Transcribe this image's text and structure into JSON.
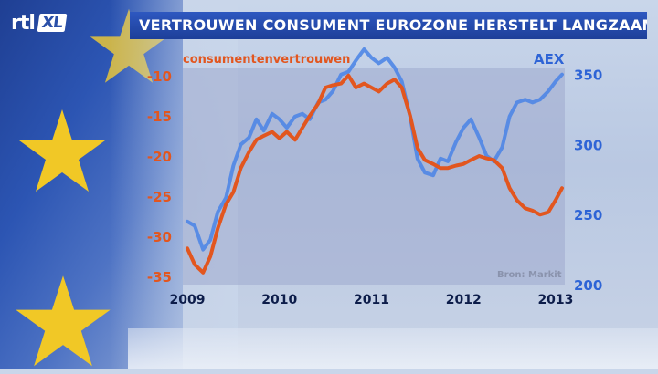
{
  "brand": {
    "logo_main": "rtl",
    "logo_badge": "XL"
  },
  "header": {
    "title": "VERTROUWEN CONSUMENT EUROZONE HERSTELT LANGZAAM"
  },
  "source_note": "Bron: Markit",
  "colors": {
    "consumer": "#e2561f",
    "aex": "#4f86e6",
    "left_axis_text": "#e2561f",
    "right_axis_text": "#2e64d6",
    "x_axis_text": "#0d1d4a",
    "star": "#f1c826"
  },
  "icons": [
    "eu-star-icon"
  ],
  "chart_data": {
    "type": "line",
    "title": "VERTROUWEN CONSUMENT EUROZONE HERSTELT LANGZAAM",
    "x_ticks": [
      "2009",
      "2010",
      "2011",
      "2012",
      "2013"
    ],
    "x_tick_values": [
      2009,
      2010,
      2011,
      2012,
      2013
    ],
    "xlim": [
      2008.95,
      2013.1
    ],
    "y_left": {
      "label": "consumentenvertrouwen",
      "ticks": [
        -10,
        -15,
        -20,
        -25,
        -30,
        -35
      ],
      "range": [
        -36,
        -9
      ]
    },
    "y_right": {
      "label": "AEX",
      "ticks": [
        350,
        300,
        250,
        200
      ],
      "range": [
        200,
        355
      ]
    },
    "grid": false,
    "series": [
      {
        "name": "consumentenvertrouwen",
        "axis": "left",
        "x": [
          2009.0,
          2009.08,
          2009.17,
          2009.25,
          2009.33,
          2009.42,
          2009.5,
          2009.58,
          2009.67,
          2009.75,
          2009.83,
          2009.92,
          2010.0,
          2010.08,
          2010.17,
          2010.25,
          2010.33,
          2010.42,
          2010.5,
          2010.58,
          2010.67,
          2010.75,
          2010.83,
          2010.92,
          2011.0,
          2011.08,
          2011.17,
          2011.25,
          2011.33,
          2011.42,
          2011.5,
          2011.58,
          2011.67,
          2011.75,
          2011.83,
          2011.92,
          2012.0,
          2012.08,
          2012.17,
          2012.25,
          2012.33,
          2012.42,
          2012.5,
          2012.58,
          2012.67,
          2012.75,
          2012.83,
          2012.92,
          2013.0,
          2013.07
        ],
        "values": [
          -31.5,
          -33.5,
          -34.5,
          -32.5,
          -29,
          -26,
          -24.5,
          -21.5,
          -19.5,
          -18,
          -17.5,
          -17,
          -17.8,
          -17,
          -18,
          -16.5,
          -15,
          -13.5,
          -11.5,
          -11.2,
          -11,
          -10,
          -11.5,
          -11,
          -11.5,
          -12,
          -11,
          -10.5,
          -11.5,
          -15,
          -19,
          -20.5,
          -21,
          -21.5,
          -21.5,
          -21.2,
          -21,
          -20.5,
          -20,
          -20.3,
          -20.5,
          -21.5,
          -24,
          -25.5,
          -26.5,
          -26.8,
          -27.3,
          -27,
          -25.5,
          -24
        ]
      },
      {
        "name": "AEX",
        "axis": "right",
        "x": [
          2009.0,
          2009.08,
          2009.17,
          2009.25,
          2009.33,
          2009.42,
          2009.5,
          2009.58,
          2009.67,
          2009.75,
          2009.83,
          2009.92,
          2010.0,
          2010.08,
          2010.17,
          2010.25,
          2010.33,
          2010.42,
          2010.5,
          2010.58,
          2010.67,
          2010.75,
          2010.83,
          2010.92,
          2011.0,
          2011.08,
          2011.17,
          2011.25,
          2011.33,
          2011.42,
          2011.5,
          2011.58,
          2011.67,
          2011.75,
          2011.83,
          2011.92,
          2012.0,
          2012.08,
          2012.17,
          2012.25,
          2012.33,
          2012.42,
          2012.5,
          2012.58,
          2012.67,
          2012.75,
          2012.83,
          2012.92,
          2013.0,
          2013.07
        ],
        "values": [
          245,
          242,
          225,
          232,
          252,
          262,
          285,
          300,
          305,
          318,
          310,
          322,
          318,
          312,
          320,
          322,
          318,
          330,
          332,
          338,
          350,
          352,
          360,
          368,
          362,
          358,
          362,
          355,
          345,
          320,
          290,
          280,
          278,
          290,
          288,
          302,
          312,
          318,
          305,
          292,
          288,
          298,
          320,
          330,
          332,
          330,
          332,
          338,
          345,
          350
        ]
      }
    ]
  }
}
